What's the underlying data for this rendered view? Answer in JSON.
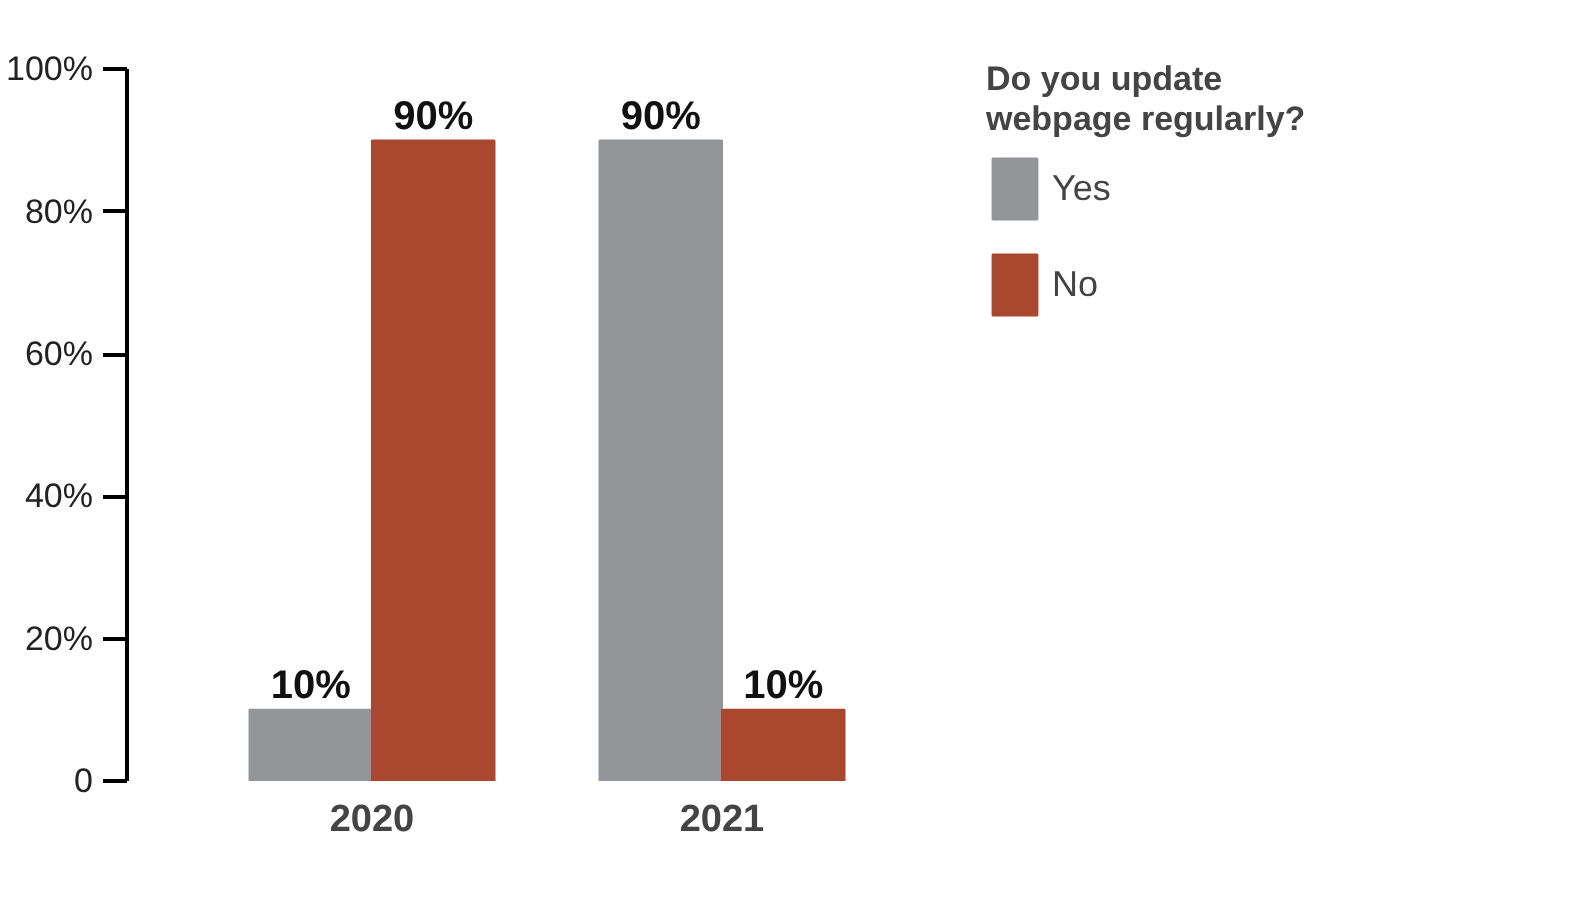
{
  "chart_data": {
    "type": "bar",
    "categories": [
      "2020",
      "2021"
    ],
    "series": [
      {
        "name": "Yes",
        "color": "#939598",
        "values": [
          10,
          90
        ],
        "value_labels": [
          "10%",
          "90%"
        ]
      },
      {
        "name": "No",
        "color": "#a9472f",
        "values": [
          90,
          10
        ],
        "value_labels": [
          "90%",
          "10%"
        ]
      }
    ],
    "legend_title": "Do you update webpage regularly?",
    "legend": "right",
    "grid": false,
    "ylim": [
      0,
      100
    ],
    "yticks": [
      {
        "value": 0,
        "label": "0"
      },
      {
        "value": 20,
        "label": "20%"
      },
      {
        "value": 40,
        "label": "40%"
      },
      {
        "value": 60,
        "label": "60%"
      },
      {
        "value": 80,
        "label": "80%"
      },
      {
        "value": 100,
        "label": "100%"
      }
    ]
  }
}
